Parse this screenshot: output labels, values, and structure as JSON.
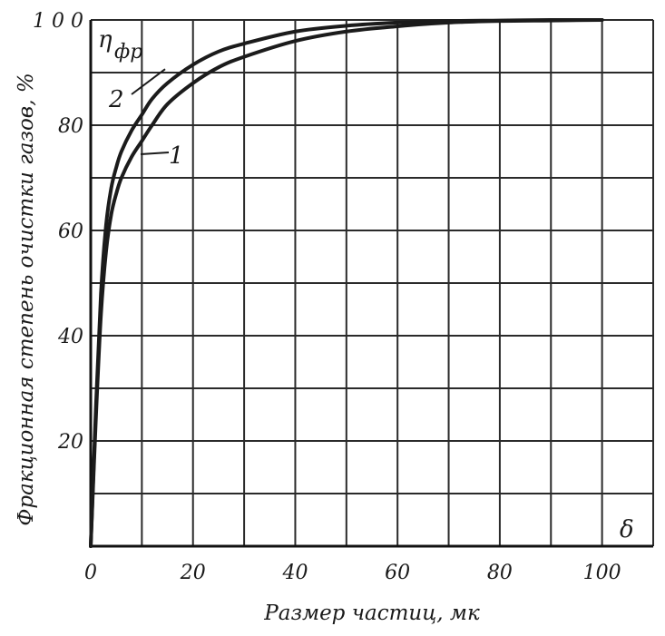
{
  "chart_data": {
    "type": "line",
    "title": "",
    "xlabel": "Размер частиц, мк",
    "ylabel": "Фракционная степень очистки газов, %",
    "y_symbol": "η",
    "y_symbol_sub": "фр",
    "x_symbol": "δ",
    "xlim": [
      0,
      110
    ],
    "ylim": [
      0,
      100
    ],
    "x_ticks": [
      0,
      20,
      40,
      60,
      80,
      100
    ],
    "y_ticks": [
      20,
      40,
      60,
      80,
      100
    ],
    "x_tick_labels": [
      "0",
      "20",
      "40",
      "60",
      "80",
      "100"
    ],
    "y_tick_labels": [
      "20",
      "40",
      "60",
      "80",
      "1 0 0"
    ],
    "grid": true,
    "grid_step_x": 10,
    "grid_step_y": 10,
    "series": [
      {
        "name": "1",
        "x": [
          0,
          1,
          2,
          3,
          4,
          5,
          6,
          8,
          10,
          12,
          15,
          20,
          25,
          30,
          40,
          50,
          60,
          70,
          80,
          90,
          100
        ],
        "y": [
          0,
          24,
          44,
          56,
          63,
          67,
          70,
          74,
          77,
          80,
          84,
          88,
          91,
          93,
          96,
          97.8,
          98.8,
          99.5,
          99.8,
          99.9,
          100
        ]
      },
      {
        "name": "2",
        "x": [
          0,
          1,
          2,
          3,
          4,
          5,
          6,
          8,
          10,
          12,
          15,
          20,
          25,
          30,
          40,
          50,
          60,
          70,
          80,
          90,
          100
        ],
        "y": [
          0,
          26,
          48,
          61,
          68,
          72,
          75,
          79,
          82,
          85,
          88,
          91.5,
          94,
          95.5,
          97.8,
          98.9,
          99.5,
          99.8,
          99.9,
          100,
          100
        ]
      }
    ]
  }
}
